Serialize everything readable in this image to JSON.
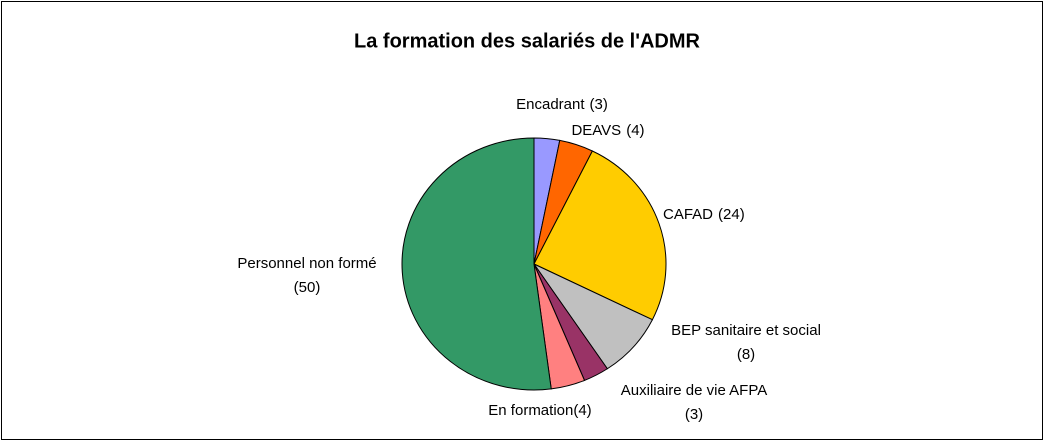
{
  "chart_data": {
    "type": "pie",
    "title": "La formation des salariés de l'ADMR",
    "categories": [
      "Encadrant",
      "DEAVS",
      "CAFAD",
      "BEP sanitaire et social",
      "Auxiliaire de vie AFPA",
      "En formation",
      "Personnel non formé"
    ],
    "values": [
      3,
      4,
      24,
      8,
      3,
      4,
      50
    ],
    "value_labels": [
      "(3)",
      "(4)",
      "(24)",
      "(8)",
      "(3)",
      "(4)",
      "(50)"
    ],
    "colors": [
      "#9999ff",
      "#ff6600",
      "#ffcc00",
      "#c0c0c0",
      "#993366",
      "#ff8080",
      "#339966"
    ]
  }
}
